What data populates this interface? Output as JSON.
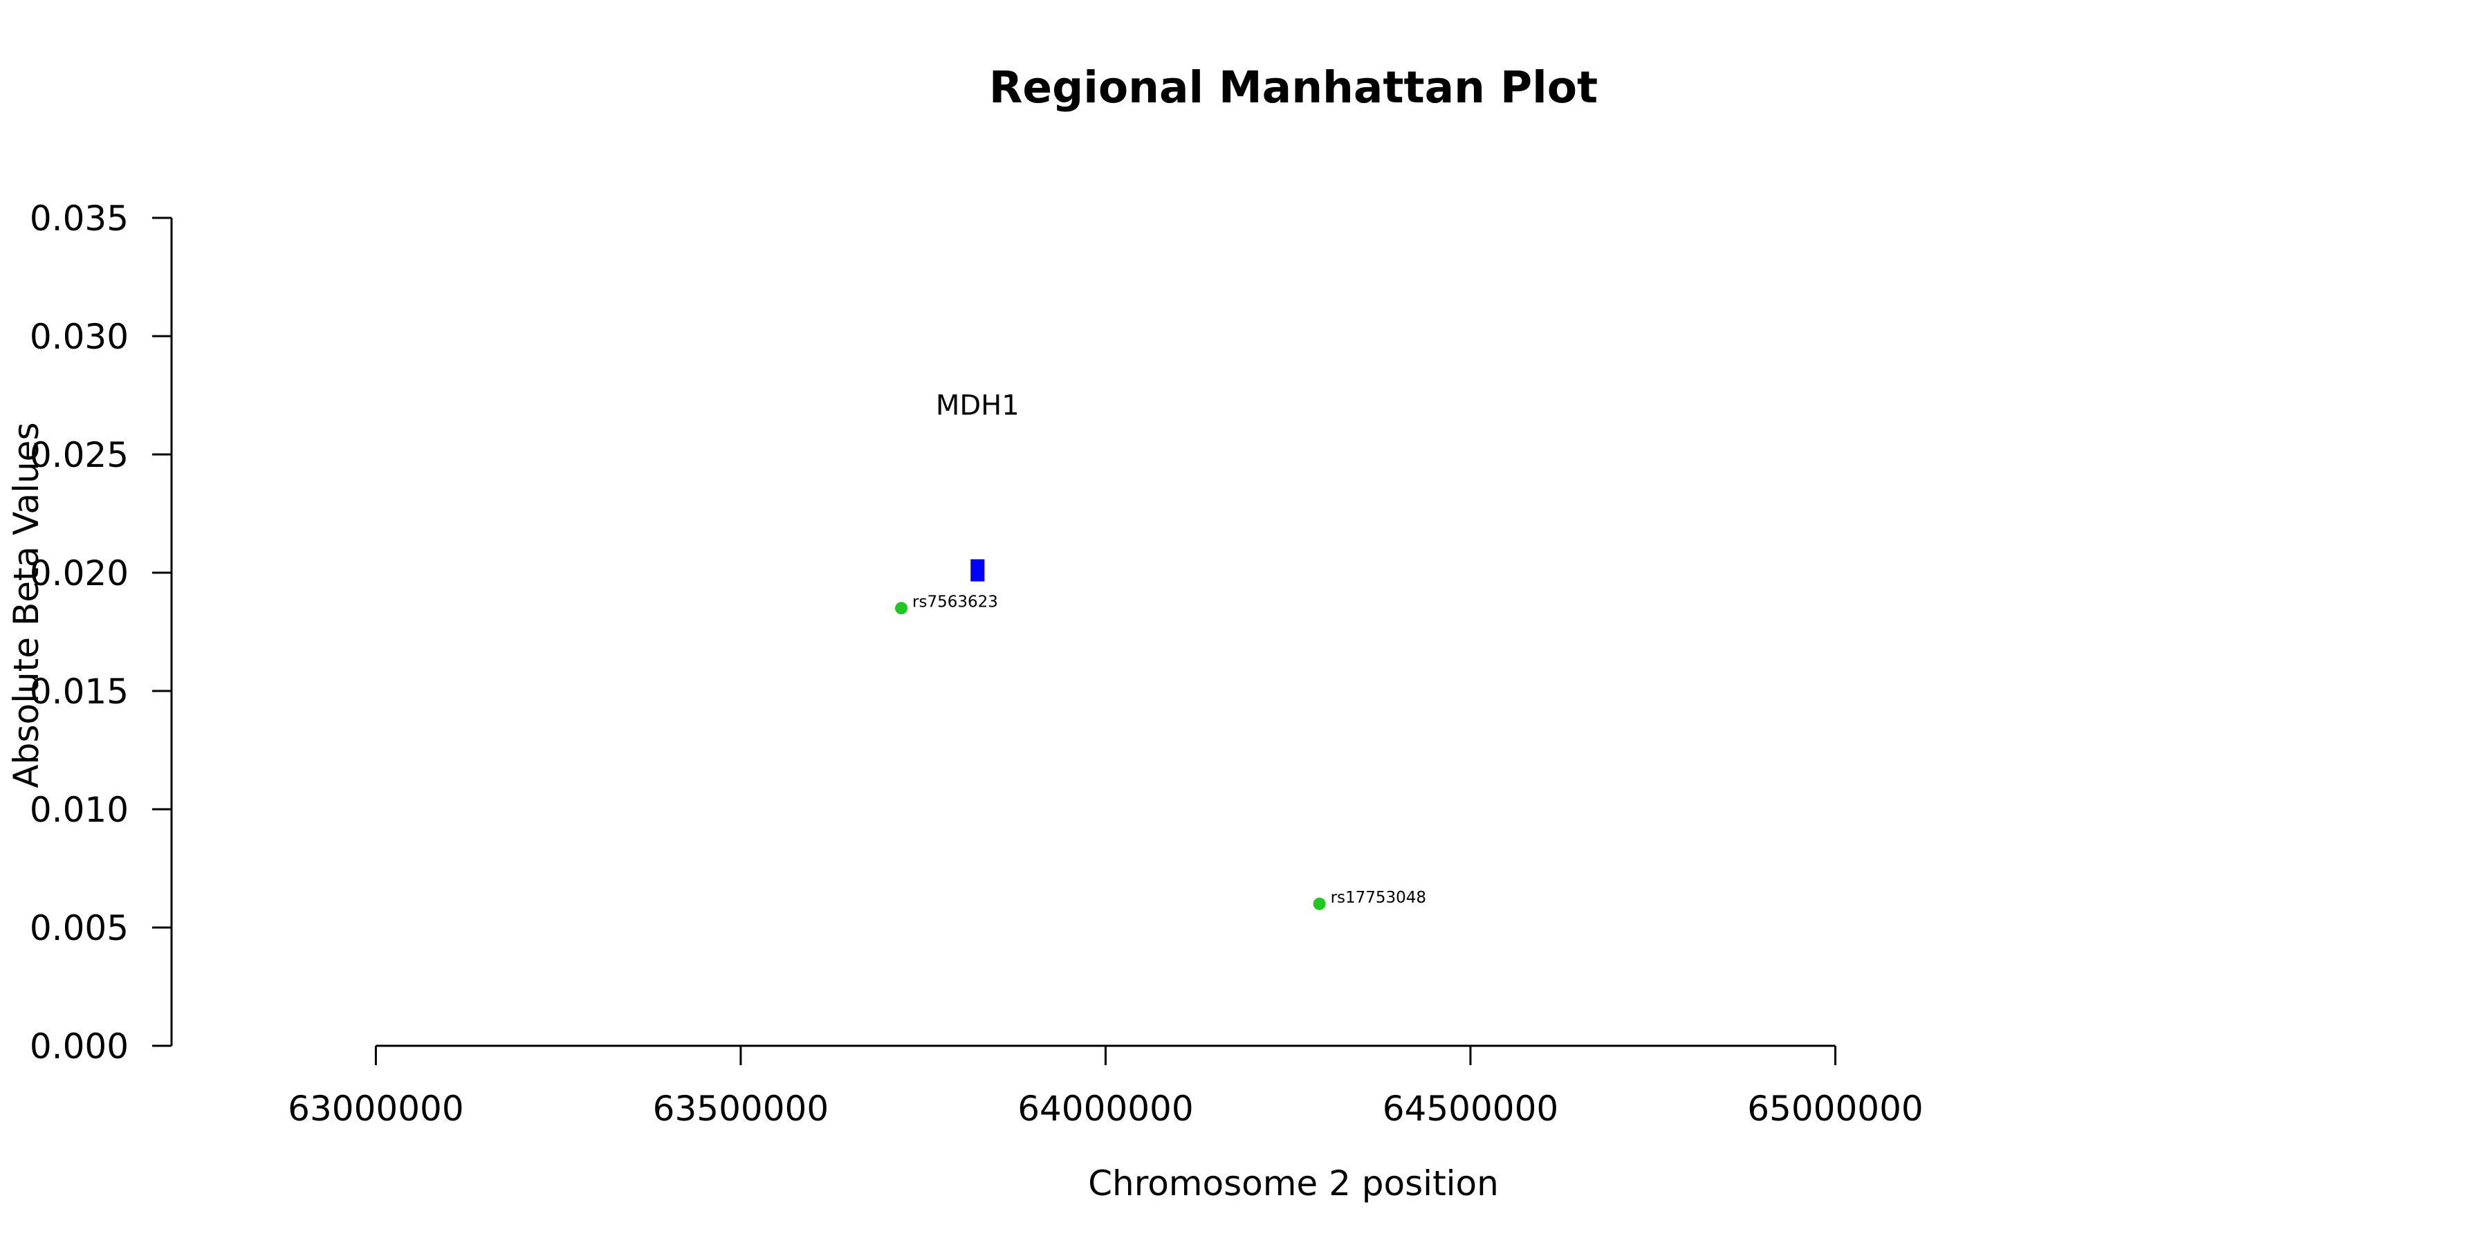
{
  "chart_data": {
    "type": "scatter",
    "title": "Regional Manhattan Plot",
    "xlabel": "Chromosome 2 position",
    "ylabel": "Absolute Beta Values",
    "xlim": [
      62720000,
      65700000
    ],
    "ylim": [
      0,
      0.035
    ],
    "x_ticks": [
      63000000,
      63500000,
      64000000,
      64500000,
      65000000
    ],
    "x_tick_labels": [
      "63000000",
      "63500000",
      "64000000",
      "64500000",
      "65000000"
    ],
    "y_ticks": [
      0,
      0.005,
      0.01,
      0.015,
      0.02,
      0.025,
      0.03,
      0.035
    ],
    "y_tick_labels": [
      "0.000",
      "0.005",
      "0.010",
      "0.015",
      "0.020",
      "0.025",
      "0.030",
      "0.035"
    ],
    "grid": false,
    "series": [
      {
        "marker": "circle",
        "color": "#1ec81e",
        "points": [
          {
            "x": 63720000,
            "y": 0.0185,
            "label": "rs7563623"
          },
          {
            "x": 64293000,
            "y": 0.006,
            "label": "rs17753048"
          }
        ]
      }
    ],
    "genes": [
      {
        "name": "MDH1",
        "start": 63815000,
        "end": 63834000,
        "y": 0.0201,
        "color": "#0000ff"
      }
    ]
  }
}
